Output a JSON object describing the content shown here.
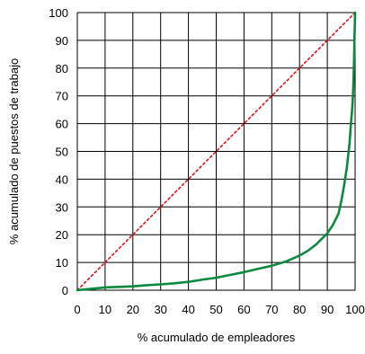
{
  "chart_data": {
    "type": "line",
    "xlabel": "% acumulado de empleadores",
    "ylabel": "% acumulado de puestos de trabajo",
    "xlim": [
      0,
      100
    ],
    "ylim": [
      0,
      100
    ],
    "x_ticks": [
      0,
      10,
      20,
      30,
      40,
      50,
      60,
      70,
      80,
      90,
      100
    ],
    "y_ticks": [
      0,
      10,
      20,
      30,
      40,
      50,
      60,
      70,
      80,
      90,
      100
    ],
    "grid": true,
    "series": [
      {
        "style": "dotted",
        "color": "#dd1111",
        "x": [
          0,
          100
        ],
        "y": [
          0,
          100
        ]
      },
      {
        "style": "solid",
        "color": "#0a8a3c",
        "x": [
          0,
          5,
          10,
          15,
          20,
          25,
          30,
          35,
          40,
          45,
          50,
          55,
          60,
          65,
          70,
          75,
          80,
          83,
          86,
          88,
          90,
          92,
          94,
          95,
          96,
          97,
          98,
          98.5,
          99,
          99.3,
          99.6,
          99.8,
          100
        ],
        "y": [
          0,
          0.5,
          1,
          1.2,
          1.4,
          1.8,
          2.1,
          2.5,
          3,
          3.8,
          4.5,
          5.5,
          6.5,
          7.7,
          8.8,
          10.3,
          12.5,
          14.2,
          16.5,
          18.5,
          20.5,
          23.5,
          27.5,
          32,
          37.5,
          44,
          53,
          60,
          66,
          72,
          82,
          92,
          100
        ]
      }
    ]
  }
}
